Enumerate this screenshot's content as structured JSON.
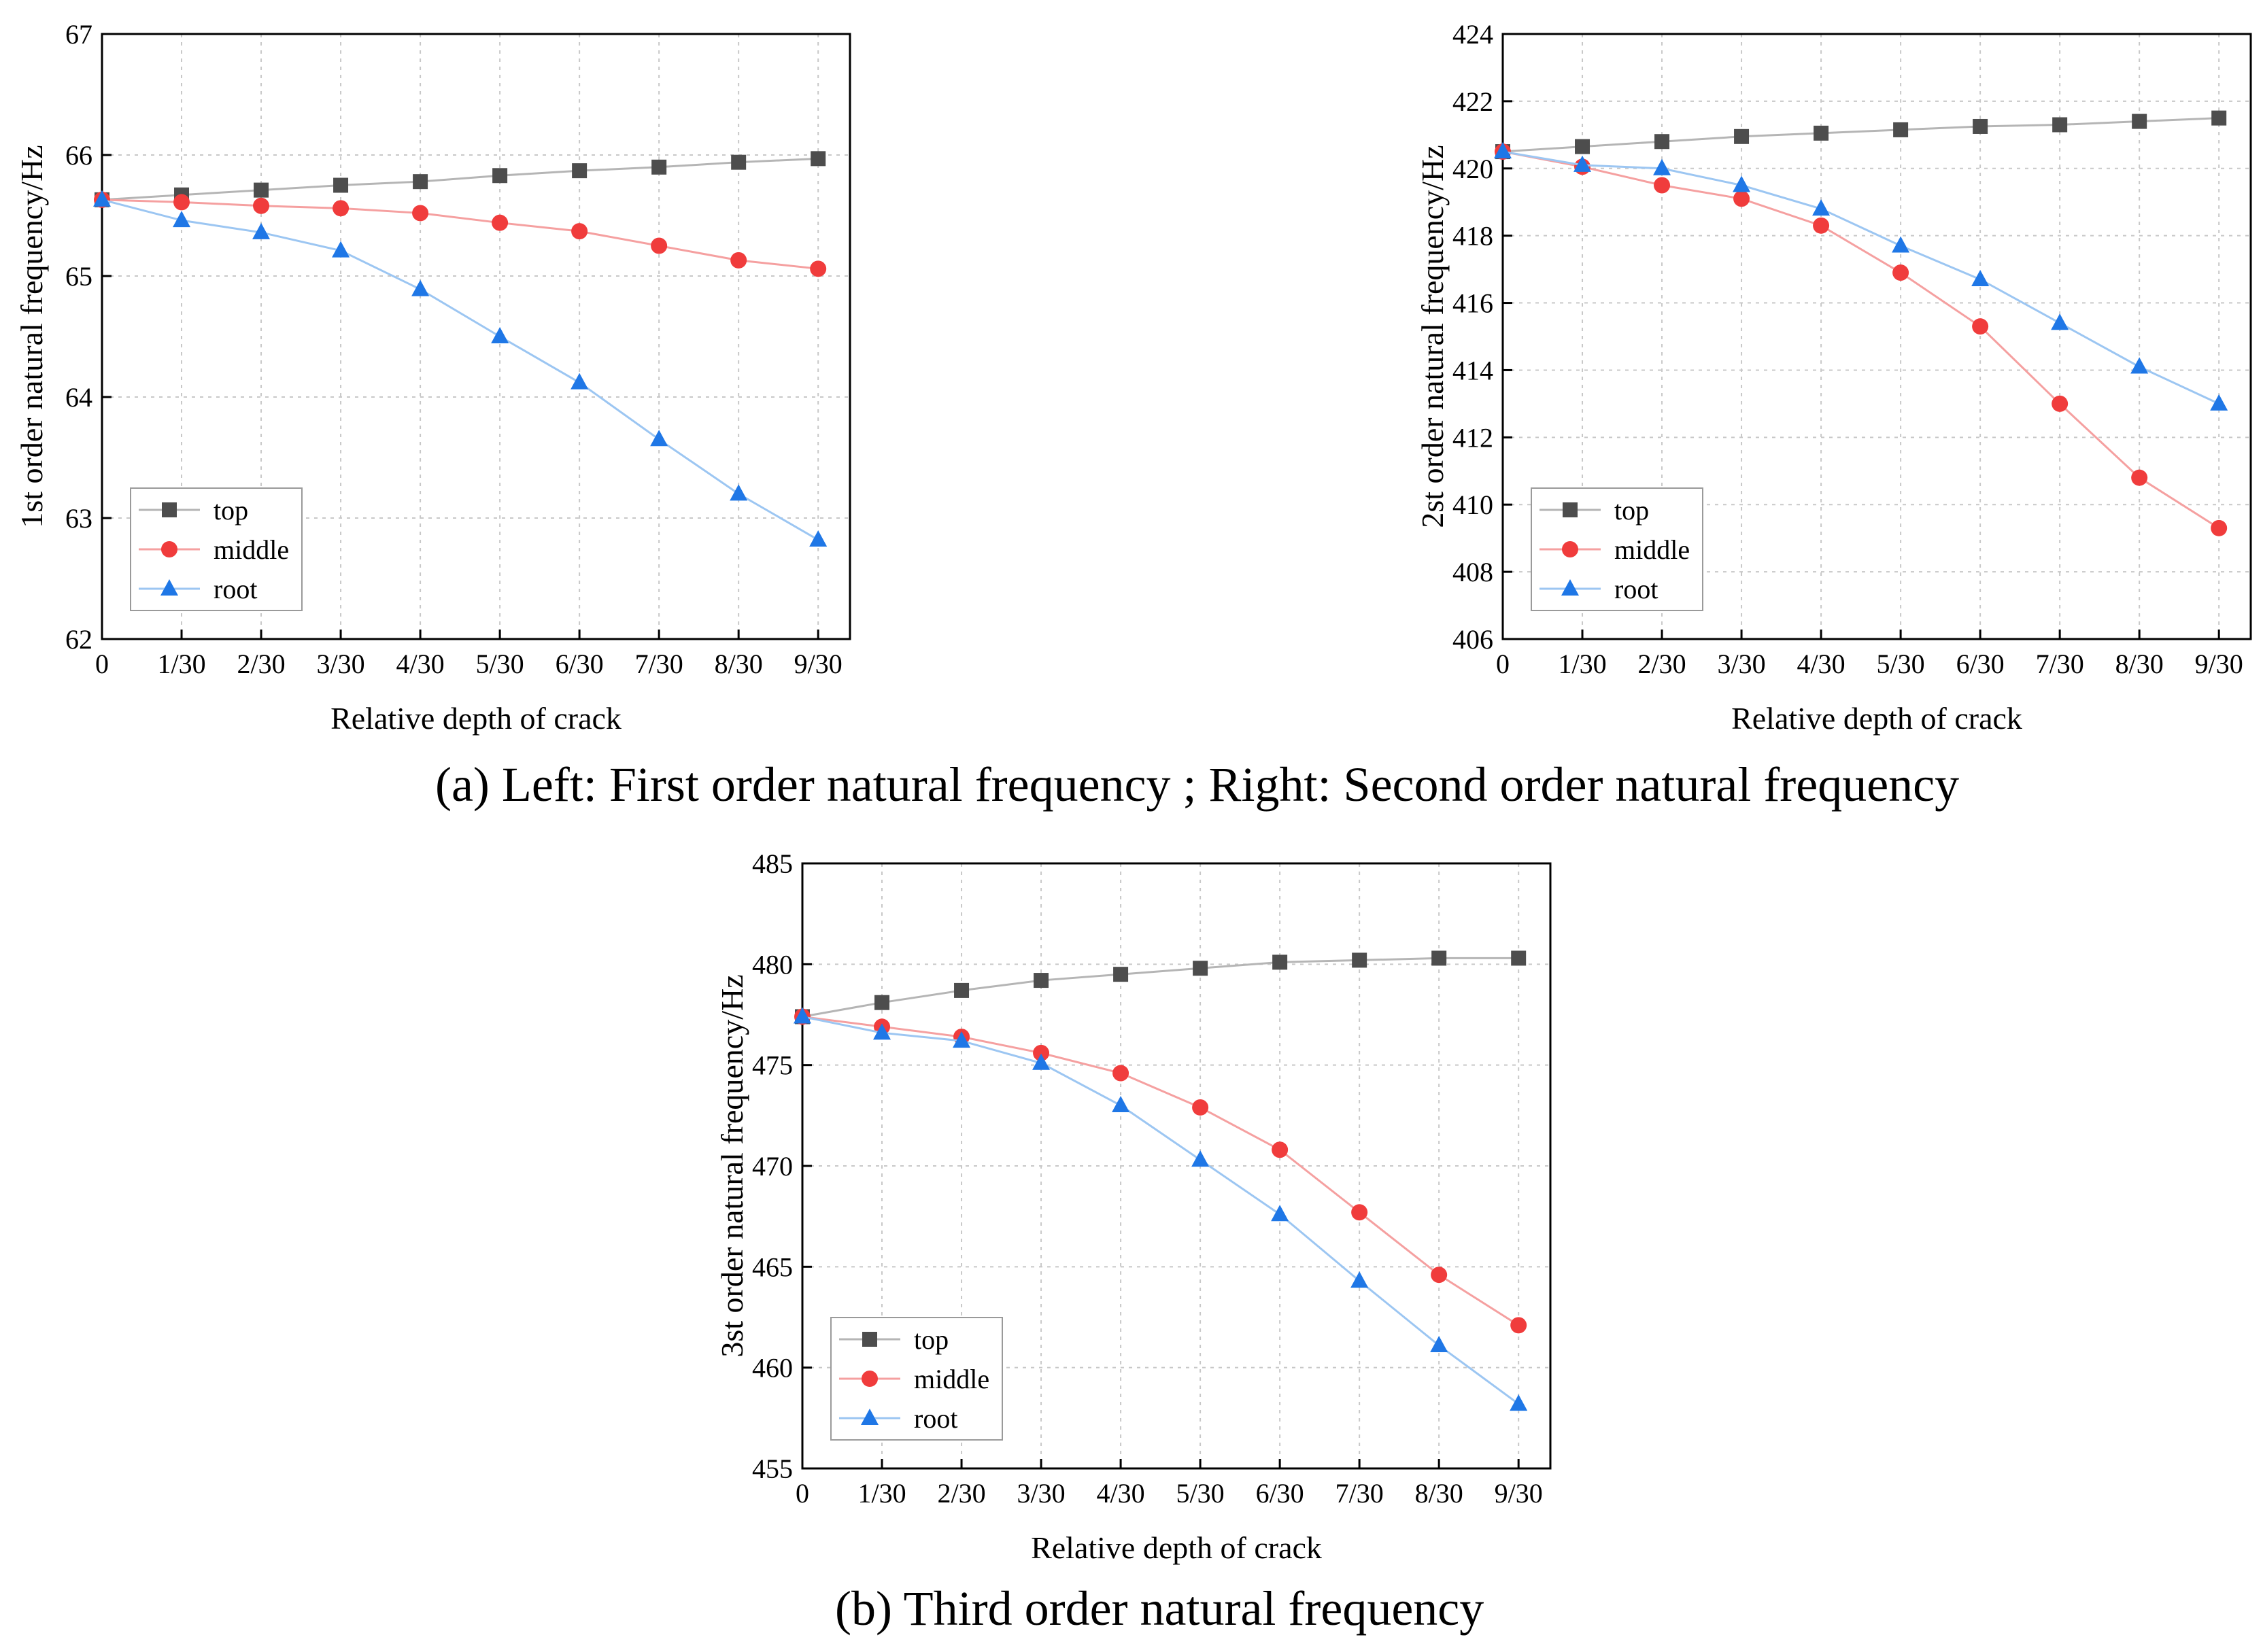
{
  "captions": {
    "a": "(a) Left: First order natural frequency ; Right: Second order natural frequency",
    "b": "(b) Third order natural frequency"
  },
  "colors": {
    "top": "#4d4d4d",
    "top_line": "#b5b5b5",
    "middle": "#f03c3c",
    "middle_line": "#f5a0a0",
    "root": "#1f77e6",
    "root_line": "#9cc6f2",
    "grid": "#c8c8c8",
    "axis": "#000000"
  },
  "chart_data": [
    {
      "type": "line",
      "xlabel": "Relative depth of crack",
      "ylabel": "1st order natural frequency/Hz",
      "categories": [
        "0",
        "1/30",
        "2/30",
        "3/30",
        "4/30",
        "5/30",
        "6/30",
        "7/30",
        "8/30",
        "9/30"
      ],
      "ylim": [
        62,
        67
      ],
      "yticks": [
        62,
        63,
        64,
        65,
        66,
        67
      ],
      "grid": true,
      "legend": "bottom-left",
      "series": [
        {
          "name": "top",
          "marker": "square",
          "values": [
            65.63,
            65.67,
            65.71,
            65.75,
            65.78,
            65.83,
            65.87,
            65.9,
            65.94,
            65.97
          ]
        },
        {
          "name": "middle",
          "marker": "circle",
          "values": [
            65.63,
            65.61,
            65.58,
            65.56,
            65.52,
            65.44,
            65.37,
            65.25,
            65.13,
            65.06
          ]
        },
        {
          "name": "root",
          "marker": "triangle",
          "values": [
            65.63,
            65.46,
            65.36,
            65.21,
            64.89,
            64.5,
            64.12,
            63.65,
            63.2,
            62.82
          ]
        }
      ]
    },
    {
      "type": "line",
      "xlabel": "Relative depth of crack",
      "ylabel": "2st order natural frequency/Hz",
      "categories": [
        "0",
        "1/30",
        "2/30",
        "3/30",
        "4/30",
        "5/30",
        "6/30",
        "7/30",
        "8/30",
        "9/30"
      ],
      "ylim": [
        406,
        424
      ],
      "yticks": [
        406,
        408,
        410,
        412,
        414,
        416,
        418,
        420,
        422,
        424
      ],
      "grid": true,
      "legend": "bottom-left",
      "series": [
        {
          "name": "top",
          "marker": "square",
          "values": [
            420.5,
            420.65,
            420.8,
            420.95,
            421.05,
            421.15,
            421.25,
            421.3,
            421.4,
            421.5
          ]
        },
        {
          "name": "middle",
          "marker": "circle",
          "values": [
            420.5,
            420.05,
            419.5,
            419.1,
            418.3,
            416.9,
            415.3,
            413.0,
            410.8,
            409.3
          ]
        },
        {
          "name": "root",
          "marker": "triangle",
          "values": [
            420.5,
            420.1,
            420.0,
            419.5,
            418.8,
            417.7,
            416.7,
            415.4,
            414.1,
            413.0
          ]
        }
      ]
    },
    {
      "type": "line",
      "xlabel": "Relative depth of crack",
      "ylabel": "3st order natural frequency/Hz",
      "categories": [
        "0",
        "1/30",
        "2/30",
        "3/30",
        "4/30",
        "5/30",
        "6/30",
        "7/30",
        "8/30",
        "9/30"
      ],
      "ylim": [
        455,
        485
      ],
      "yticks": [
        455,
        460,
        465,
        470,
        475,
        480,
        485
      ],
      "grid": true,
      "legend": "bottom-left",
      "series": [
        {
          "name": "top",
          "marker": "square",
          "values": [
            477.4,
            478.1,
            478.7,
            479.2,
            479.5,
            479.8,
            480.1,
            480.2,
            480.3,
            480.3
          ]
        },
        {
          "name": "middle",
          "marker": "circle",
          "values": [
            477.4,
            476.9,
            476.4,
            475.6,
            474.6,
            472.9,
            470.8,
            467.7,
            464.6,
            462.1
          ]
        },
        {
          "name": "root",
          "marker": "triangle",
          "values": [
            477.4,
            476.6,
            476.2,
            475.1,
            473.0,
            470.3,
            467.6,
            464.3,
            461.1,
            458.2
          ]
        }
      ]
    }
  ]
}
